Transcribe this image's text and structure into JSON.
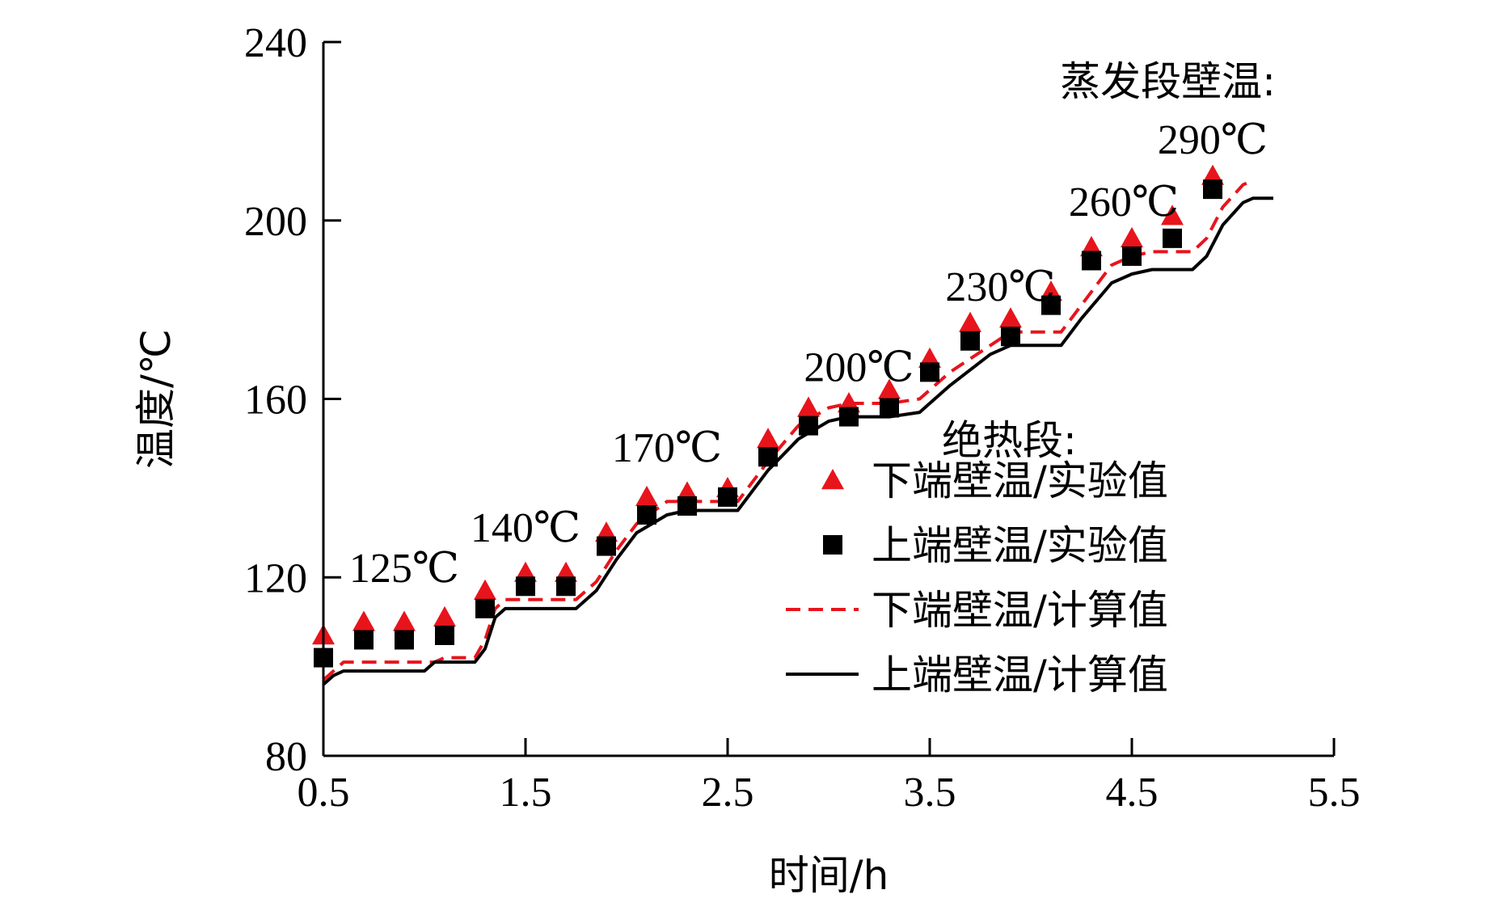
{
  "chart_data": {
    "type": "line",
    "xlabel": "时间/h",
    "ylabel": "温度/℃",
    "xlim": [
      0.5,
      5.5
    ],
    "ylim": [
      80,
      240
    ],
    "xticks": [
      "0.5",
      "1.5",
      "2.5",
      "3.5",
      "4.5",
      "5.5"
    ],
    "yticks": [
      "80",
      "120",
      "160",
      "200",
      "240"
    ],
    "grid": false,
    "legend_position": "right",
    "legend_title": "绝热段:",
    "annotation_title": "蒸发段壁温:",
    "annotations": [
      {
        "text": "125℃",
        "x": 0.9,
        "y": 119
      },
      {
        "text": "140℃",
        "x": 1.5,
        "y": 128
      },
      {
        "text": "170℃",
        "x": 2.2,
        "y": 146
      },
      {
        "text": "200℃",
        "x": 3.15,
        "y": 164
      },
      {
        "text": "230℃",
        "x": 3.85,
        "y": 182
      },
      {
        "text": "260℃",
        "x": 4.46,
        "y": 201
      },
      {
        "text": "290℃",
        "x": 4.9,
        "y": 215
      }
    ],
    "series": [
      {
        "name": "下端壁温/实验值",
        "kind": "marker",
        "marker": "triangle",
        "color": "#e8141c",
        "x": [
          0.5,
          0.7,
          0.9,
          1.1,
          1.3,
          1.5,
          1.7,
          1.9,
          2.1,
          2.3,
          2.5,
          2.7,
          2.9,
          3.1,
          3.3,
          3.5,
          3.7,
          3.9,
          4.1,
          4.3,
          4.5,
          4.7,
          4.9
        ],
        "y": [
          107,
          110,
          110,
          111,
          117,
          121,
          121,
          130,
          138,
          139,
          140,
          151,
          158,
          159,
          162,
          169,
          177,
          178,
          184,
          194,
          196,
          201,
          210
        ]
      },
      {
        "name": "上端壁温/实验值",
        "kind": "marker",
        "marker": "square",
        "color": "#000000",
        "x": [
          0.5,
          0.7,
          0.9,
          1.1,
          1.3,
          1.5,
          1.7,
          1.9,
          2.1,
          2.3,
          2.5,
          2.7,
          2.9,
          3.1,
          3.3,
          3.5,
          3.7,
          3.9,
          4.1,
          4.3,
          4.5,
          4.7,
          4.9
        ],
        "y": [
          102,
          106,
          106,
          107,
          113,
          118,
          118,
          127,
          134,
          136,
          138,
          147,
          154,
          156,
          158,
          166,
          173,
          174,
          181,
          191,
          192,
          196,
          207
        ]
      },
      {
        "name": "下端壁温/计算值",
        "kind": "line",
        "dash": true,
        "color": "#e8141c",
        "x": [
          0.5,
          0.55,
          0.6,
          0.7,
          0.9,
          1.05,
          1.1,
          1.25,
          1.3,
          1.35,
          1.4,
          1.55,
          1.75,
          1.85,
          1.95,
          2.05,
          2.2,
          2.3,
          2.55,
          2.7,
          2.85,
          3.0,
          3.1,
          3.3,
          3.45,
          3.6,
          3.8,
          3.9,
          4.05,
          4.15,
          4.25,
          4.4,
          4.5,
          4.6,
          4.8,
          4.87,
          4.95,
          5.05,
          5.1
        ],
        "y": [
          97,
          99,
          101,
          101,
          101,
          101,
          102,
          102,
          106,
          113,
          115,
          115,
          115,
          119,
          126,
          132,
          137,
          137,
          137,
          146,
          154,
          158,
          159,
          159,
          160,
          166,
          172,
          175,
          175,
          175,
          181,
          190,
          192,
          193,
          193,
          196,
          203,
          208,
          209
        ]
      },
      {
        "name": "上端壁温/计算值",
        "kind": "line",
        "dash": false,
        "color": "#000000",
        "x": [
          0.5,
          0.55,
          0.6,
          0.7,
          0.9,
          1.0,
          1.05,
          1.1,
          1.25,
          1.3,
          1.35,
          1.4,
          1.55,
          1.75,
          1.85,
          1.95,
          2.05,
          2.2,
          2.3,
          2.5,
          2.55,
          2.7,
          2.85,
          3.0,
          3.1,
          3.3,
          3.45,
          3.6,
          3.8,
          3.9,
          4.05,
          4.15,
          4.25,
          4.4,
          4.5,
          4.6,
          4.8,
          4.87,
          4.95,
          5.05,
          5.1,
          5.2
        ],
        "y": [
          96,
          98,
          99,
          99,
          99,
          99,
          101,
          101,
          101,
          104,
          111,
          113,
          113,
          113,
          117,
          124,
          130,
          134,
          135,
          135,
          135,
          144,
          151,
          155,
          156,
          156,
          157,
          163,
          170,
          172,
          172,
          172,
          178,
          186,
          188,
          189,
          189,
          192,
          199,
          204,
          205,
          205
        ]
      }
    ]
  }
}
